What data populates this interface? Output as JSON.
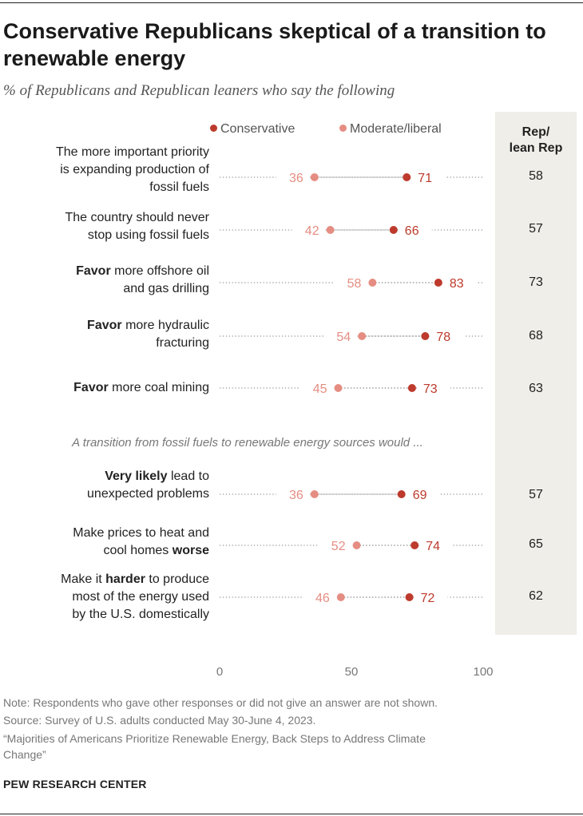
{
  "title": "Conservative Republicans skeptical of a transition to renewable energy",
  "subtitle": "% of Republicans and Republican leaners who say the following",
  "legend": {
    "conservative": "Conservative",
    "moderate": "Moderate/liberal"
  },
  "rep_header": [
    "Rep/",
    "lean Rep"
  ],
  "section_note": "A transition from fossil fuels to renewable energy sources would ...",
  "colors": {
    "conservative": "#bd3a2c",
    "moderate": "#e58d82",
    "rep_column_bg": "#efeee8"
  },
  "rows": [
    {
      "label_parts": [
        {
          "text": "The more important priority",
          "bold": false
        },
        {
          "text": "is expanding production of",
          "bold": false
        },
        {
          "text": "fossil fuels",
          "bold": false
        }
      ]
    },
    {
      "label_parts": [
        {
          "text": "The country should never",
          "bold": false
        },
        {
          "text": "stop using fossil fuels",
          "bold": false
        }
      ]
    },
    {
      "label_parts": [
        {
          "text": "Favor",
          "bold": true
        },
        {
          "text": " more offshore oil",
          "bold": false
        },
        {
          "text": "and gas drilling",
          "bold": false
        }
      ]
    },
    {
      "label_parts": [
        {
          "text": "Favor",
          "bold": true
        },
        {
          "text": " more hydraulic",
          "bold": false
        },
        {
          "text": "fracturing",
          "bold": false
        }
      ]
    },
    {
      "label_parts": [
        {
          "text": "Favor",
          "bold": true
        },
        {
          "text": " more coal mining",
          "bold": false
        }
      ]
    },
    {
      "label_parts": [
        {
          "text": "Very likely",
          "bold": true
        },
        {
          "text": " lead to",
          "bold": false
        },
        {
          "text": "unexpected problems",
          "bold": false
        }
      ]
    },
    {
      "label_parts": [
        {
          "text": "Make prices to heat and",
          "bold": false
        },
        {
          "text": "cool homes ",
          "bold": false
        },
        {
          "text": "worse",
          "bold": true
        }
      ]
    },
    {
      "label_parts": [
        {
          "text": "Make it ",
          "bold": false
        },
        {
          "text": "harder",
          "bold": true
        },
        {
          "text": " to produce",
          "bold": false
        },
        {
          "text": "most of the energy used",
          "bold": false
        },
        {
          "text": "by the U.S. domestically",
          "bold": false
        }
      ]
    }
  ],
  "chart_data": {
    "type": "scatter",
    "subtype": "dot-plot",
    "title": "Conservative Republicans skeptical of a transition to renewable energy",
    "subtitle": "% of Republicans and Republican leaners who say the following",
    "categories": [
      "The more important priority is expanding production of fossil fuels",
      "The country should never stop using fossil fuels",
      "Favor more offshore oil and gas drilling",
      "Favor more hydraulic fracturing",
      "Favor more coal mining",
      "Very likely lead to unexpected problems",
      "Make prices to heat and cool homes worse",
      "Make it harder to produce most of the energy used by the U.S. domestically"
    ],
    "series": [
      {
        "name": "Conservative",
        "values": [
          71,
          66,
          83,
          78,
          73,
          69,
          74,
          72
        ]
      },
      {
        "name": "Moderate/liberal",
        "values": [
          36,
          42,
          58,
          54,
          45,
          36,
          52,
          46
        ]
      }
    ],
    "rep_lean_rep": [
      58,
      57,
      73,
      68,
      63,
      57,
      65,
      62
    ],
    "xlim": [
      0,
      100
    ],
    "xticks": [
      0,
      50,
      100
    ],
    "legend_position": "top"
  },
  "footer": {
    "note": "Note: Respondents who gave other responses or did not give an answer are not shown.",
    "source": "Source: Survey of U.S. adults conducted May 30-June 4, 2023.",
    "report_line1": "“Majorities of Americans Prioritize Renewable Energy, Back Steps to Address Climate",
    "report_line2": "Change”"
  },
  "brand": "PEW RESEARCH CENTER"
}
